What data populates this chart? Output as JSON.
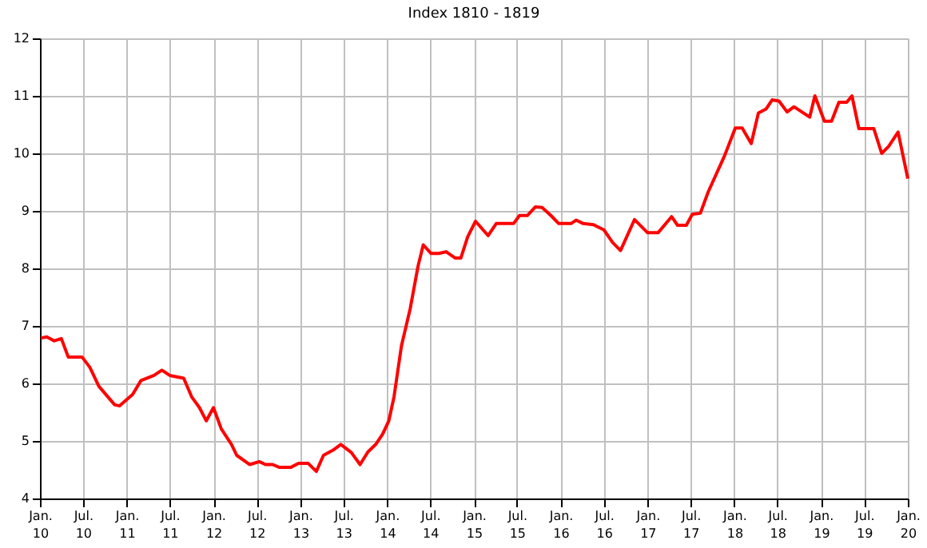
{
  "chart_data": {
    "type": "line",
    "title": "Index 1810 - 1819",
    "x": [
      "1810-01-05",
      "1810-01-30",
      "1810-03-02",
      "1810-04-01",
      "1810-04-30",
      "1810-06-27",
      "1810-07-30",
      "1810-09-06",
      "1810-11-11",
      "1810-12-02",
      "1811-01-26",
      "1811-03-02",
      "1811-04-26",
      "1811-05-29",
      "1811-07-01",
      "1811-08-29",
      "1811-10-01",
      "1811-11-03",
      "1811-12-02",
      "1812-01-01",
      "1812-02-03",
      "1812-03-17",
      "1812-04-08",
      "1812-06-02",
      "1812-07-12",
      "1812-08-07",
      "1812-09-06",
      "1812-10-05",
      "1812-11-21",
      "1812-12-24",
      "1813-02-03",
      "1813-03-09",
      "1813-04-08",
      "1813-05-18",
      "1813-06-20",
      "1813-08-03",
      "1813-09-09",
      "1813-10-12",
      "1813-11-14",
      "1813-12-13",
      "1814-01-08",
      "1814-01-30",
      "1814-03-02",
      "1814-04-08",
      "1814-05-11",
      "1814-06-02",
      "1814-07-05",
      "1814-08-07",
      "1814-09-06",
      "1814-10-15",
      "1814-11-07",
      "1814-12-06",
      "1815-01-08",
      "1815-03-02",
      "1815-04-05",
      "1815-06-17",
      "1815-07-12",
      "1815-08-14",
      "1815-09-17",
      "1815-10-15",
      "1815-11-21",
      "1815-12-24",
      "1816-02-14",
      "1816-03-06",
      "1816-04-05",
      "1816-05-18",
      "1816-07-01",
      "1816-08-07",
      "1816-09-09",
      "1816-11-07",
      "1817-01-01",
      "1817-02-14",
      "1817-04-12",
      "1817-05-07",
      "1817-06-13",
      "1817-07-08",
      "1817-08-11",
      "1817-09-13",
      "1817-11-21",
      "1818-01-05",
      "1818-02-03",
      "1818-03-13",
      "1818-04-12",
      "1818-05-14",
      "1818-06-09",
      "1818-07-08",
      "1818-08-11",
      "1818-09-09",
      "1818-10-12",
      "1818-11-14",
      "1818-12-06",
      "1819-01-15",
      "1819-02-14",
      "1819-03-17",
      "1819-04-19",
      "1819-05-11",
      "1819-06-09",
      "1819-08-11",
      "1819-09-13",
      "1819-10-12",
      "1819-11-21",
      "1820-01-01"
    ],
    "series": [
      {
        "color": "#ff0000",
        "values": [
          6.79,
          6.81,
          6.74,
          6.78,
          6.46,
          6.46,
          6.28,
          5.95,
          5.63,
          5.61,
          5.81,
          6.05,
          6.14,
          6.23,
          6.14,
          6.09,
          5.77,
          5.58,
          5.35,
          5.58,
          5.21,
          4.94,
          4.75,
          4.59,
          4.64,
          4.59,
          4.59,
          4.54,
          4.54,
          4.61,
          4.61,
          4.47,
          4.75,
          4.84,
          4.94,
          4.8,
          4.59,
          4.81,
          4.94,
          5.12,
          5.35,
          5.77,
          6.65,
          7.3,
          8.04,
          8.41,
          8.26,
          8.26,
          8.29,
          8.18,
          8.18,
          8.55,
          8.82,
          8.57,
          8.78,
          8.78,
          8.92,
          8.92,
          9.07,
          9.06,
          8.92,
          8.78,
          8.78,
          8.84,
          8.78,
          8.76,
          8.67,
          8.45,
          8.31,
          8.85,
          8.62,
          8.62,
          8.9,
          8.75,
          8.75,
          8.94,
          8.96,
          9.33,
          9.96,
          10.44,
          10.44,
          10.17,
          10.7,
          10.77,
          10.93,
          10.91,
          10.72,
          10.81,
          10.72,
          10.63,
          11.0,
          10.56,
          10.56,
          10.89,
          10.89,
          11.0,
          10.43,
          10.43,
          10.0,
          10.12,
          10.37,
          9.56
        ]
      }
    ],
    "xlim": [
      "1810-01-01",
      "1820-01-01"
    ],
    "xticks": [
      {
        "value": "1810-01-01",
        "label": "Jan.\n10"
      },
      {
        "value": "1810-07-01",
        "label": "Jul.\n10"
      },
      {
        "value": "1811-01-01",
        "label": "Jan.\n11"
      },
      {
        "value": "1811-07-01",
        "label": "Jul.\n11"
      },
      {
        "value": "1812-01-01",
        "label": "Jan.\n12"
      },
      {
        "value": "1812-07-01",
        "label": "Jul.\n12"
      },
      {
        "value": "1813-01-01",
        "label": "Jan.\n13"
      },
      {
        "value": "1813-07-01",
        "label": "Jul.\n13"
      },
      {
        "value": "1814-01-01",
        "label": "Jan.\n14"
      },
      {
        "value": "1814-07-01",
        "label": "Jul.\n14"
      },
      {
        "value": "1815-01-01",
        "label": "Jan.\n15"
      },
      {
        "value": "1815-07-01",
        "label": "Jul.\n15"
      },
      {
        "value": "1816-01-01",
        "label": "Jan.\n16"
      },
      {
        "value": "1816-07-01",
        "label": "Jul.\n16"
      },
      {
        "value": "1817-01-01",
        "label": "Jan.\n17"
      },
      {
        "value": "1817-07-01",
        "label": "Jul.\n17"
      },
      {
        "value": "1818-01-01",
        "label": "Jan.\n18"
      },
      {
        "value": "1818-07-01",
        "label": "Jul.\n18"
      },
      {
        "value": "1819-01-01",
        "label": "Jan.\n19"
      },
      {
        "value": "1819-07-01",
        "label": "Jul.\n19"
      },
      {
        "value": "1820-01-01",
        "label": "Jan.\n20"
      }
    ],
    "ylim": [
      4,
      12
    ],
    "yticks": [
      4,
      5,
      6,
      7,
      8,
      9,
      10,
      11,
      12
    ],
    "grid": true,
    "marker": "none",
    "line_style": "solid",
    "legend": false
  }
}
